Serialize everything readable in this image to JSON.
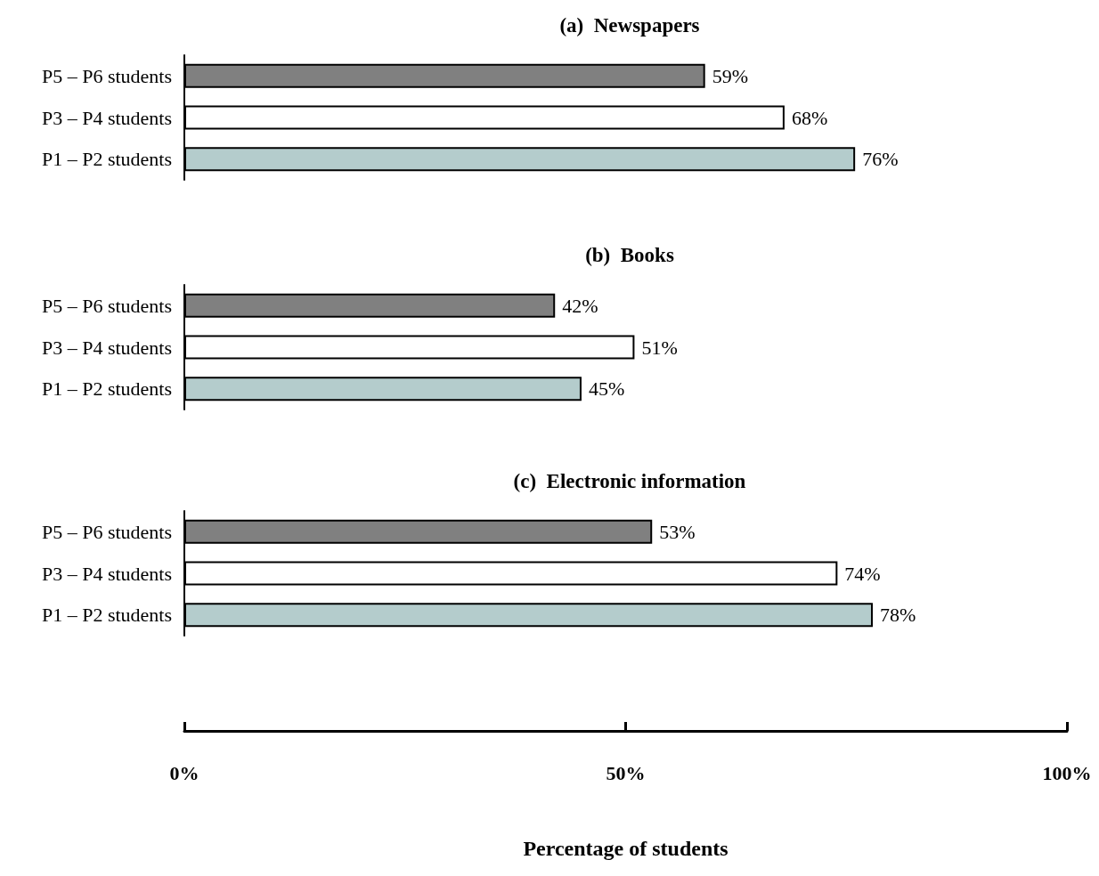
{
  "chart_data": [
    {
      "type": "bar",
      "orientation": "horizontal",
      "title": "(a)  Newspapers",
      "categories": [
        "P5 – P6 students",
        "P3 – P4 students",
        "P1 – P2 students"
      ],
      "values": [
        59,
        68,
        76
      ],
      "colors": [
        "#808080",
        "#ffffff",
        "#b4cccc"
      ],
      "value_labels": [
        "59%",
        "68%",
        "76%"
      ],
      "xlim": [
        0,
        100
      ],
      "tick_labels": "y"
    },
    {
      "type": "bar",
      "orientation": "horizontal",
      "title": "(b)  Books",
      "categories": [
        "P5 – P6 students",
        "P3 – P4 students",
        "P1 – P2 students"
      ],
      "values": [
        42,
        51,
        45
      ],
      "colors": [
        "#808080",
        "#ffffff",
        "#b4cccc"
      ],
      "value_labels": [
        "42%",
        "51%",
        "45%"
      ],
      "xlim": [
        0,
        100
      ],
      "tick_labels": "y"
    },
    {
      "type": "bar",
      "orientation": "horizontal",
      "title": "(c)  Electronic information",
      "categories": [
        "P5 – P6 students",
        "P3 – P4 students",
        "P1 – P2 students"
      ],
      "values": [
        53,
        74,
        78
      ],
      "colors": [
        "#808080",
        "#ffffff",
        "#b4cccc"
      ],
      "value_labels": [
        "53%",
        "74%",
        "78%"
      ],
      "xlim": [
        0,
        100
      ],
      "xticks": [
        {
          "value": 0,
          "label": "0%"
        },
        {
          "value": 50,
          "label": "50%"
        },
        {
          "value": 100,
          "label": "100%"
        }
      ],
      "xlabel": "Percentage of students"
    }
  ]
}
